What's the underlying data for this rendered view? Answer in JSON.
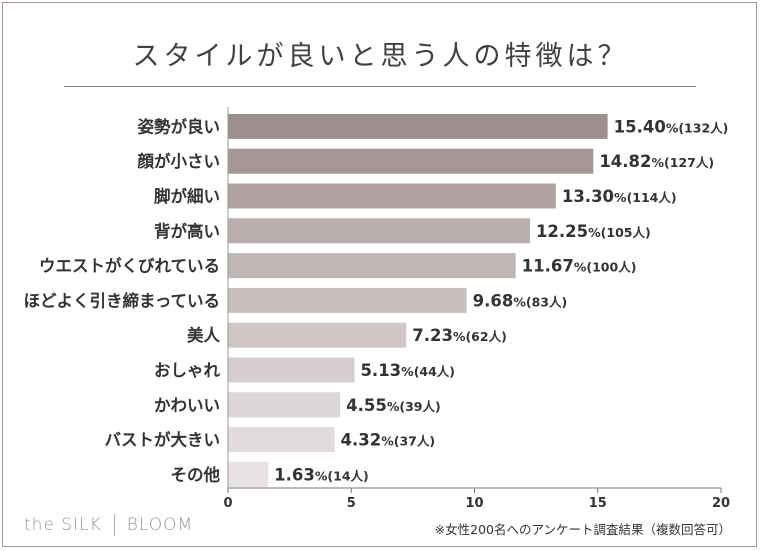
{
  "title": "スタイルが良いと思う人の特徴は？",
  "chart_data": {
    "type": "bar",
    "orientation": "horizontal",
    "categories": [
      "姿勢が良い",
      "顔が小さい",
      "脚が細い",
      "背が高い",
      "ウエストがくびれている",
      "ほどよく引き締まっている",
      "美人",
      "おしゃれ",
      "かわいい",
      "バストが大きい",
      "その他"
    ],
    "values": [
      15.4,
      14.82,
      13.3,
      12.25,
      11.67,
      9.68,
      7.23,
      5.13,
      4.55,
      4.32,
      1.63
    ],
    "percent_labels": [
      "15.40",
      "14.82",
      "13.30",
      "12.25",
      "11.67",
      "9.68",
      "7.23",
      "5.13",
      "4.55",
      "4.32",
      "1.63"
    ],
    "count_labels": [
      "(132人)",
      "(127人)",
      "(114人)",
      "(105人)",
      "(100人)",
      "(83人)",
      "(62人)",
      "(44人)",
      "(39人)",
      "(37人)",
      "(14人)"
    ],
    "unit": "%",
    "xlim": [
      0,
      20
    ],
    "xticks": [
      "0",
      "5",
      "10",
      "15",
      "20"
    ],
    "bar_colors": [
      "#9e8f8f",
      "#a69797",
      "#b0a2a2",
      "#baaeae",
      "#c1b6b6",
      "#c8bebe",
      "#cfc6c6",
      "#d6cece",
      "#ddd6d6",
      "#e2dbdb",
      "#e8e3e3"
    ],
    "text_color": "#333333"
  },
  "footer": {
    "brand_left": "the SILK",
    "brand_right": "BLOOM",
    "note": "※女性200名へのアンケート調査結果（複数回答可）"
  }
}
